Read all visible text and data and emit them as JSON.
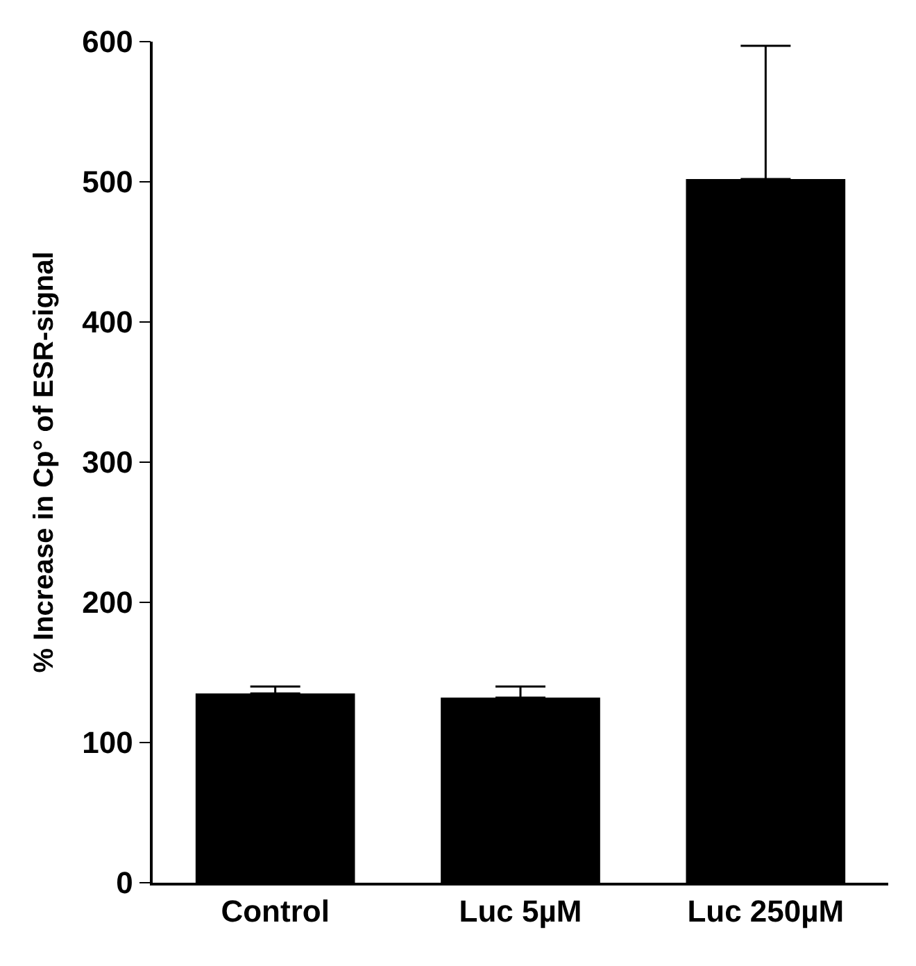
{
  "chart_data": {
    "type": "bar",
    "ylabel": "% Increase in Cp° of ESR-signal",
    "categories": [
      "Control",
      "Luc 5µM",
      "Luc 250µM"
    ],
    "values": [
      135,
      132,
      502
    ],
    "errors": [
      [
        135,
        140
      ],
      [
        132,
        140
      ],
      [
        502,
        597
      ]
    ],
    "color": "#000000",
    "ylim": [
      0,
      600
    ],
    "yticks": [
      0,
      100,
      200,
      300,
      400,
      500,
      600
    ]
  }
}
